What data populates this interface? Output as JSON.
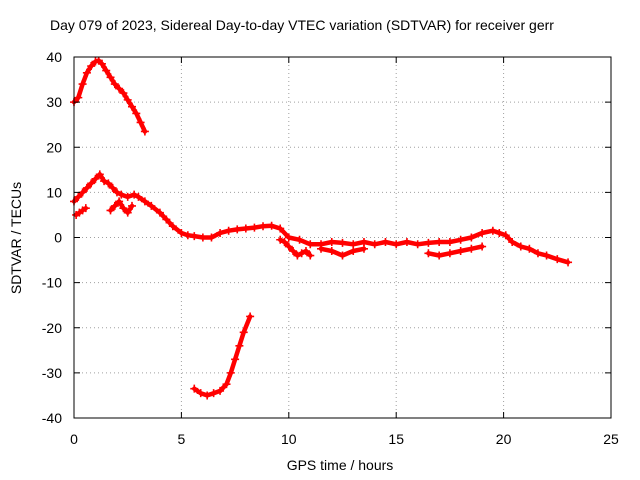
{
  "chart_data": {
    "type": "scatter",
    "title": "Day 079 of 2023, Sidereal Day-to-day VTEC variation (SDTVAR) for receiver gerr",
    "xlabel": "GPS time / hours",
    "ylabel": "SDTVAR / TECUs",
    "xlim": [
      0,
      25
    ],
    "ylim": [
      -40,
      40
    ],
    "xticks": [
      0,
      5,
      10,
      15,
      20,
      25
    ],
    "yticks": [
      -40,
      -30,
      -20,
      -10,
      0,
      10,
      20,
      30,
      40
    ],
    "xtick_labels": [
      "0",
      "5",
      "10",
      "15",
      "20",
      "25"
    ],
    "ytick_labels": [
      "-40",
      "-30",
      "-20",
      "-10",
      "0",
      "10",
      "20",
      "30",
      "40"
    ],
    "grid": true,
    "legend": "none",
    "marker": "plus",
    "color": "#ff0000",
    "series": [
      {
        "name": "arc-upper",
        "x": [
          0.0,
          0.2,
          0.4,
          0.6,
          0.8,
          1.0,
          1.15,
          1.3,
          1.5,
          1.7,
          1.9,
          2.1,
          2.3,
          2.5,
          2.7,
          2.9,
          3.1,
          3.3
        ],
        "y": [
          30.0,
          31.0,
          34.0,
          36.5,
          38.0,
          39.0,
          39.2,
          38.5,
          37.0,
          35.5,
          34.0,
          33.0,
          32.0,
          30.5,
          29.0,
          27.5,
          25.5,
          23.5
        ]
      },
      {
        "name": "arc-main",
        "x": [
          0.0,
          0.2,
          0.4,
          0.6,
          0.8,
          1.0,
          1.2,
          1.4,
          1.6,
          1.8,
          2.0,
          2.2,
          2.5,
          2.8,
          3.0,
          3.3,
          3.6,
          4.0,
          4.3,
          4.6,
          5.0,
          5.3,
          5.6,
          6.0,
          6.4,
          6.8,
          7.2,
          7.6,
          8.0,
          8.4,
          8.8,
          9.2,
          9.6,
          10.0,
          10.5,
          11.0,
          11.5,
          12.0,
          12.5,
          13.0,
          13.5,
          14.0,
          14.5,
          15.0,
          15.5,
          16.0,
          16.5,
          17.0,
          17.5,
          18.0,
          18.5,
          19.0,
          19.5,
          19.8,
          20.1,
          20.4,
          20.8,
          21.2,
          21.6,
          22.0,
          22.5,
          23.0
        ],
        "y": [
          8.0,
          9.0,
          10.0,
          11.0,
          12.0,
          13.0,
          14.0,
          12.5,
          12.0,
          11.0,
          10.0,
          9.5,
          9.0,
          9.5,
          9.0,
          8.0,
          7.0,
          5.5,
          4.0,
          2.5,
          1.0,
          0.5,
          0.3,
          0.0,
          0.0,
          1.0,
          1.5,
          1.8,
          2.0,
          2.2,
          2.5,
          2.6,
          2.0,
          0.0,
          -0.5,
          -1.5,
          -1.5,
          -1.0,
          -1.2,
          -1.5,
          -1.0,
          -1.5,
          -1.0,
          -1.5,
          -1.0,
          -1.5,
          -1.2,
          -1.0,
          -1.0,
          -0.5,
          0.0,
          1.0,
          1.5,
          1.0,
          0.5,
          -1.0,
          -2.0,
          -2.5,
          -3.5,
          -4.0,
          -4.8,
          -5.5
        ]
      },
      {
        "name": "arc-branch-a",
        "x": [
          0.1,
          0.25,
          0.4,
          0.55
        ],
        "y": [
          5.0,
          5.5,
          6.0,
          6.5
        ]
      },
      {
        "name": "arc-branch-b",
        "x": [
          1.7,
          1.9,
          2.1,
          2.3,
          2.5,
          2.7
        ],
        "y": [
          6.0,
          7.0,
          8.0,
          6.5,
          5.5,
          7.0
        ]
      },
      {
        "name": "arc-branch-c",
        "x": [
          9.6,
          9.8,
          10.0,
          10.2,
          10.4,
          10.6,
          10.8,
          11.0
        ],
        "y": [
          -0.5,
          -1.0,
          -2.0,
          -3.0,
          -4.0,
          -3.5,
          -3.0,
          -4.0
        ]
      },
      {
        "name": "arc-branch-d",
        "x": [
          11.5,
          12.0,
          12.5,
          13.0,
          13.5
        ],
        "y": [
          -2.5,
          -3.0,
          -4.0,
          -3.0,
          -2.5
        ]
      },
      {
        "name": "arc-branch-e",
        "x": [
          16.5,
          17.0,
          17.5,
          18.0,
          18.5,
          19.0
        ],
        "y": [
          -3.5,
          -4.0,
          -3.5,
          -3.0,
          -2.5,
          -2.0
        ]
      },
      {
        "name": "arc-lower",
        "x": [
          5.6,
          5.9,
          6.2,
          6.5,
          6.8,
          7.1,
          7.3,
          7.5,
          7.7,
          7.9,
          8.2
        ],
        "y": [
          -33.5,
          -34.5,
          -35.0,
          -34.5,
          -34.0,
          -32.5,
          -30.0,
          -27.0,
          -24.0,
          -21.0,
          -17.5
        ]
      }
    ]
  }
}
